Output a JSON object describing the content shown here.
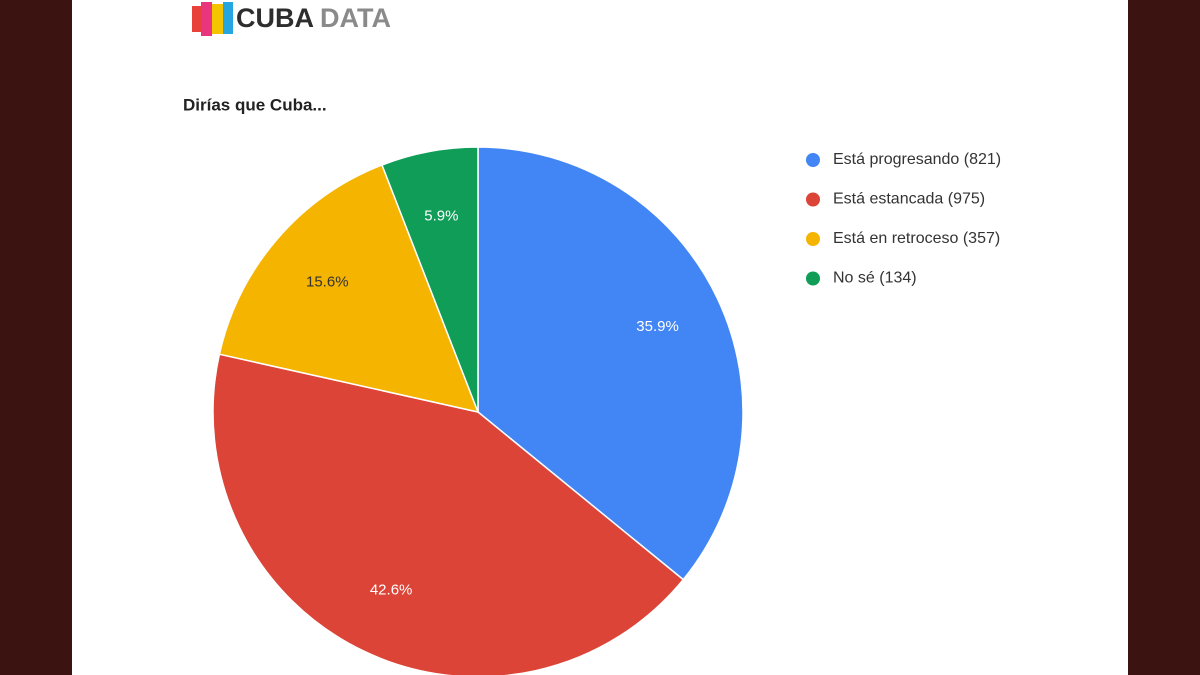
{
  "brand": {
    "part1": "CUBA",
    "part2": "DATA"
  },
  "chart_data": {
    "type": "pie",
    "title": "Dirías que Cuba...",
    "categories": [
      "Está progresando (821)",
      "Está estancada (975)",
      "Está en retroceso (357)",
      "No sé (134)"
    ],
    "values": [
      35.9,
      42.6,
      15.6,
      5.9
    ],
    "value_labels": [
      "35.9%",
      "42.6%",
      "15.6%",
      "5.9%"
    ],
    "colors": [
      "#4285f4",
      "#db4437",
      "#f4b400",
      "#0f9d58"
    ]
  }
}
